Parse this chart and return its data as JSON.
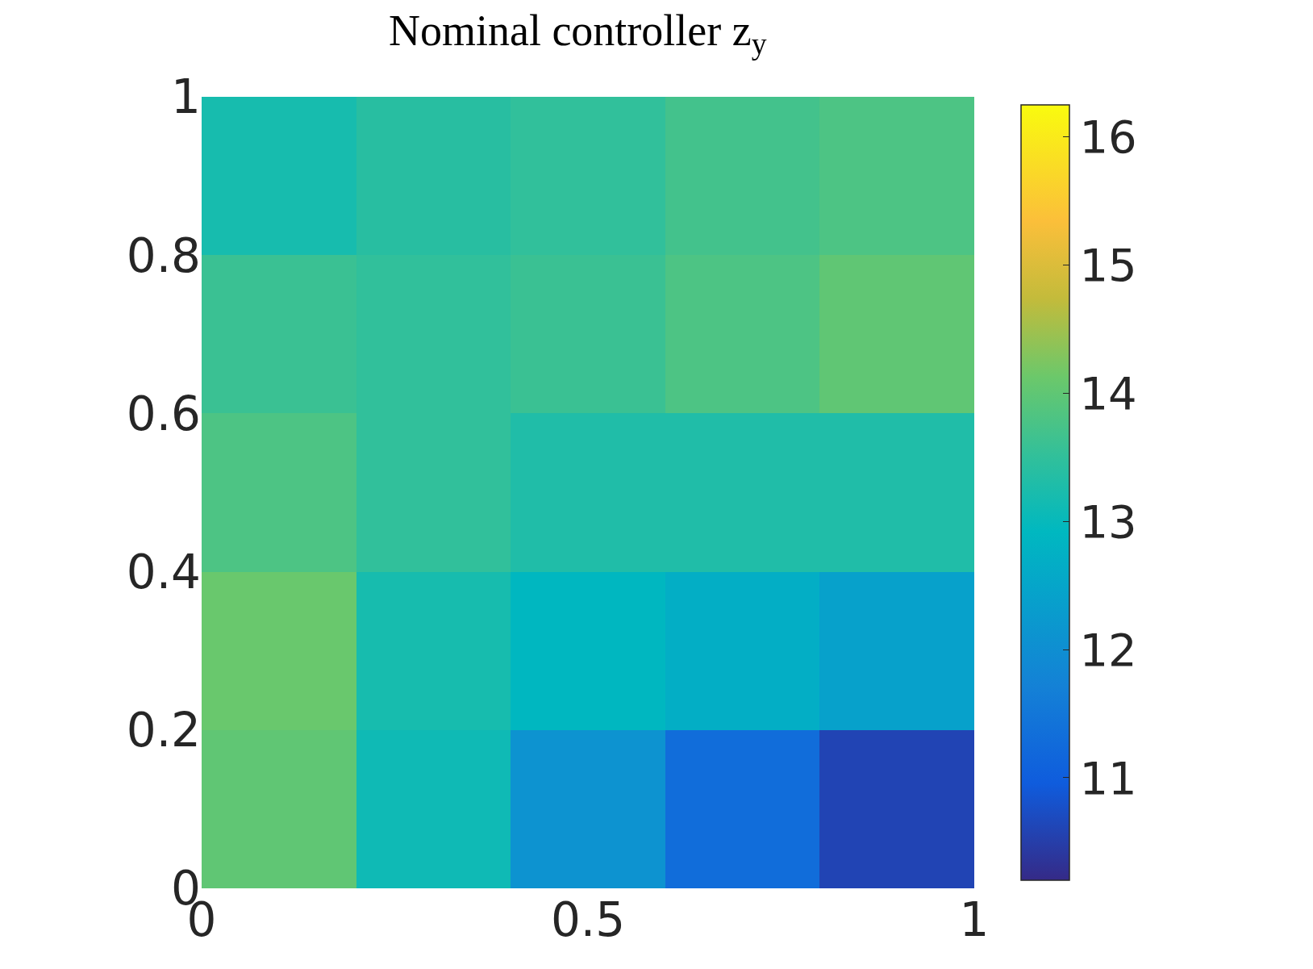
{
  "chart_data": {
    "type": "heatmap",
    "title": "Nominal controller z$_{y}$",
    "x": [
      0.1,
      0.3,
      0.5,
      0.7,
      0.9
    ],
    "y": [
      0.1,
      0.3,
      0.5,
      0.7,
      0.9
    ],
    "cells": [
      [
        14.0,
        13.1,
        12.1,
        11.3,
        10.6
      ],
      [
        14.1,
        13.2,
        12.9,
        12.7,
        12.4
      ],
      [
        13.8,
        13.5,
        13.3,
        13.3,
        13.3
      ],
      [
        13.6,
        13.5,
        13.6,
        13.8,
        14.0
      ],
      [
        13.2,
        13.4,
        13.5,
        13.7,
        13.8
      ]
    ],
    "xlim": [
      0,
      1
    ],
    "xticks": [
      0,
      0.5,
      1
    ],
    "ylim": [
      0,
      1
    ],
    "yticks": [
      0,
      0.2,
      0.4,
      0.6,
      0.8,
      1
    ],
    "clim": [
      10.2,
      16.25
    ],
    "cticks": [
      11,
      12,
      13,
      14,
      15,
      16
    ]
  }
}
